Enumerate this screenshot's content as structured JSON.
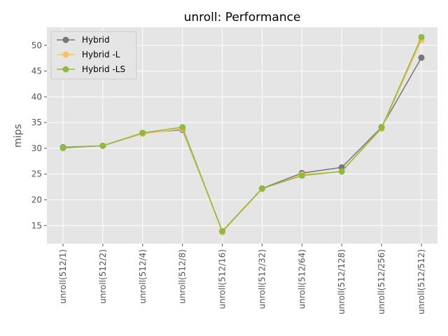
{
  "chart_data": {
    "type": "line",
    "title": "unroll: Performance",
    "xlabel": "",
    "ylabel": "mips",
    "ylim": [
      11.5,
      53.5
    ],
    "yticks": [
      15,
      20,
      25,
      30,
      35,
      40,
      45,
      50
    ],
    "grid": true,
    "legend_position": "top-left",
    "categories": [
      "unroll(512/1)",
      "unroll(512/2)",
      "unroll(512/4)",
      "unroll(512/8)",
      "unroll(512/16)",
      "unroll(512/32)",
      "unroll(512/64)",
      "unroll(512/128)",
      "unroll(512/256)",
      "unroll(512/512)"
    ],
    "series": [
      {
        "name": "Hybrid",
        "color": "#777777",
        "values": [
          30.2,
          30.5,
          33.0,
          33.6,
          13.9,
          22.2,
          25.2,
          26.3,
          34.1,
          47.6
        ]
      },
      {
        "name": "Hybrid -L",
        "color": "#FBC15E",
        "values": [
          30.0,
          30.5,
          32.8,
          33.8,
          13.7,
          22.1,
          24.9,
          25.5,
          33.8,
          51.0
        ]
      },
      {
        "name": "Hybrid -LS",
        "color": "#8EBA42",
        "values": [
          30.1,
          30.5,
          33.0,
          34.1,
          13.9,
          22.2,
          24.7,
          25.5,
          34.0,
          51.6
        ]
      }
    ]
  }
}
